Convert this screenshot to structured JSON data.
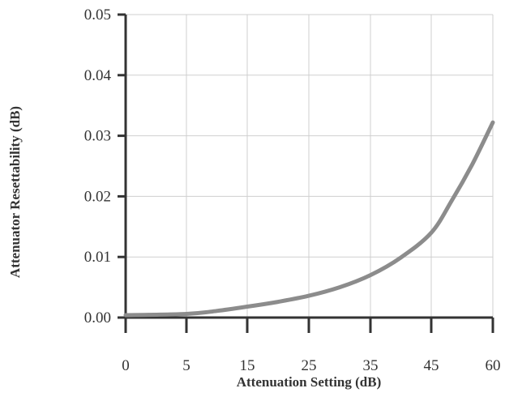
{
  "chart_data": {
    "type": "line",
    "title": "",
    "xlabel": "Attenuation Setting (dB)",
    "ylabel": "Attenuator Resettability (dB)",
    "x_ticks": [
      0,
      5,
      15,
      25,
      35,
      45,
      60
    ],
    "x_tick_labels": [
      "0",
      "5",
      "15",
      "25",
      "35",
      "45",
      "60"
    ],
    "y_ticks": [
      0.0,
      0.01,
      0.02,
      0.03,
      0.04,
      0.05
    ],
    "y_tick_labels": [
      "0.00",
      "0.01",
      "0.02",
      "0.03",
      "0.04",
      "0.05"
    ],
    "ylim": [
      0,
      0.05
    ],
    "grid": true,
    "line_color": "#8c8c8c",
    "series": [
      {
        "x": [
          0,
          5,
          10,
          15,
          20,
          25,
          30,
          35,
          40,
          45,
          50,
          55,
          60
        ],
        "y": [
          0.0004,
          0.0006,
          0.0011,
          0.0018,
          0.0026,
          0.0036,
          0.005,
          0.007,
          0.0099,
          0.014,
          0.0193,
          0.0253,
          0.0322
        ]
      }
    ]
  }
}
